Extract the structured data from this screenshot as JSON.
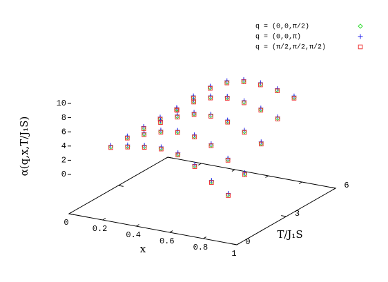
{
  "chart_data": {
    "type": "scatter3d",
    "xlabel": "x",
    "ylabel": "T/J₁S",
    "zlabel": "α(q,x,T/J₁S)",
    "xlim": [
      0,
      1
    ],
    "ylim": [
      0,
      6
    ],
    "zlim": [
      0,
      10
    ],
    "xticks": [
      0,
      0.2,
      0.4,
      0.6,
      0.8,
      1
    ],
    "yticks": [
      0,
      3,
      6
    ],
    "zticks": [
      0,
      2,
      4,
      6,
      8,
      10
    ],
    "legend": "top-right",
    "x": [
      0.2,
      0.3,
      0.4,
      0.5,
      0.6,
      0.7,
      0.8,
      0.9,
      0.2,
      0.3,
      0.4,
      0.5,
      0.6,
      0.7,
      0.8,
      0.9,
      0.2,
      0.3,
      0.4,
      0.5,
      0.6,
      0.7,
      0.8,
      0.9,
      0.2,
      0.3,
      0.4,
      0.5,
      0.6,
      0.7,
      0.8,
      0.9,
      0.2,
      0.3,
      0.4,
      0.5,
      0.6,
      0.7,
      0.8,
      0.9
    ],
    "y": [
      0.5,
      0.5,
      0.5,
      0.5,
      0.5,
      0.5,
      0.5,
      0.5,
      1.5,
      1.5,
      1.5,
      1.5,
      1.5,
      1.5,
      1.5,
      1.5,
      2.5,
      2.5,
      2.5,
      2.5,
      2.5,
      2.5,
      2.5,
      2.5,
      3.5,
      3.5,
      3.5,
      3.5,
      3.5,
      3.5,
      3.5,
      3.5,
      4.5,
      4.5,
      4.5,
      4.5,
      4.5,
      4.5,
      4.5,
      4.5
    ],
    "series": [
      {
        "name": "q = (0,0,π/2)",
        "color": "#33dd33",
        "marker": "diamond",
        "values": [
          4.1,
          4.6,
          5.0,
          5.2,
          4.8,
          3.6,
          1.8,
          0.4,
          4.1,
          5.0,
          5.8,
          6.2,
          6.0,
          5.2,
          3.6,
          2.0,
          4.1,
          5.4,
          6.6,
          7.4,
          7.6,
          7.2,
          6.2,
          5.0,
          4.1,
          5.8,
          7.4,
          8.4,
          8.8,
          8.6,
          8.0,
          7.2,
          4.1,
          6.2,
          8.0,
          9.2,
          9.8,
          9.8,
          9.4,
          8.8
        ]
      },
      {
        "name": "q = (0,0,π)",
        "color": "#2222ee",
        "marker": "plus",
        "values": [
          4.3,
          4.8,
          5.2,
          5.4,
          5.0,
          3.8,
          2.0,
          0.6,
          4.3,
          5.2,
          6.0,
          6.4,
          6.2,
          5.4,
          3.8,
          2.2,
          4.3,
          5.6,
          6.8,
          7.6,
          7.8,
          7.4,
          6.4,
          5.2,
          4.3,
          6.0,
          7.6,
          8.6,
          9.0,
          8.8,
          8.2,
          7.4,
          4.3,
          6.4,
          8.2,
          9.4,
          10.0,
          10.0,
          9.6,
          9.0
        ]
      },
      {
        "name": "q = (π/2,π/2,π/2)",
        "color": "#ee3333",
        "marker": "square",
        "values": [
          4.0,
          4.5,
          4.9,
          5.1,
          4.7,
          3.5,
          1.7,
          0.3,
          4.0,
          4.9,
          5.7,
          6.1,
          5.9,
          5.1,
          3.5,
          1.9,
          4.0,
          5.3,
          6.5,
          7.3,
          7.5,
          7.1,
          6.1,
          4.9,
          4.0,
          5.7,
          7.3,
          8.3,
          8.7,
          8.5,
          7.9,
          7.1,
          4.0,
          6.1,
          7.9,
          9.1,
          9.7,
          9.7,
          9.3,
          8.7
        ]
      }
    ]
  }
}
